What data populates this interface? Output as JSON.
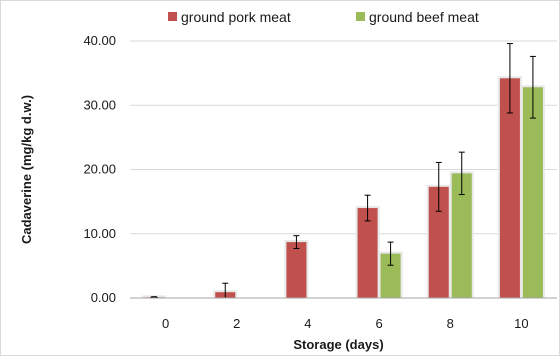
{
  "chart_data": {
    "type": "bar",
    "title": "",
    "xlabel": "Storage (days)",
    "ylabel": "Cadaverine  (mg/kg d.w.)",
    "categories": [
      "0",
      "2",
      "4",
      "6",
      "8",
      "10"
    ],
    "ylim": [
      0,
      40
    ],
    "y_ticks": [
      "0.00",
      "10.00",
      "20.00",
      "30.00",
      "40.00"
    ],
    "grid": true,
    "legend_position": "top",
    "series": [
      {
        "name": "ground pork meat",
        "color": "#c0504d",
        "values": [
          0.1,
          0.9,
          8.7,
          14.0,
          17.3,
          34.2
        ],
        "errors": [
          0.1,
          1.4,
          1.0,
          2.0,
          3.8,
          5.4
        ]
      },
      {
        "name": "ground beef meat",
        "color": "#9bbb59",
        "values": [
          0,
          0,
          0,
          6.9,
          19.4,
          32.8
        ],
        "errors": [
          0,
          0,
          0,
          1.8,
          3.3,
          4.8
        ]
      }
    ]
  }
}
